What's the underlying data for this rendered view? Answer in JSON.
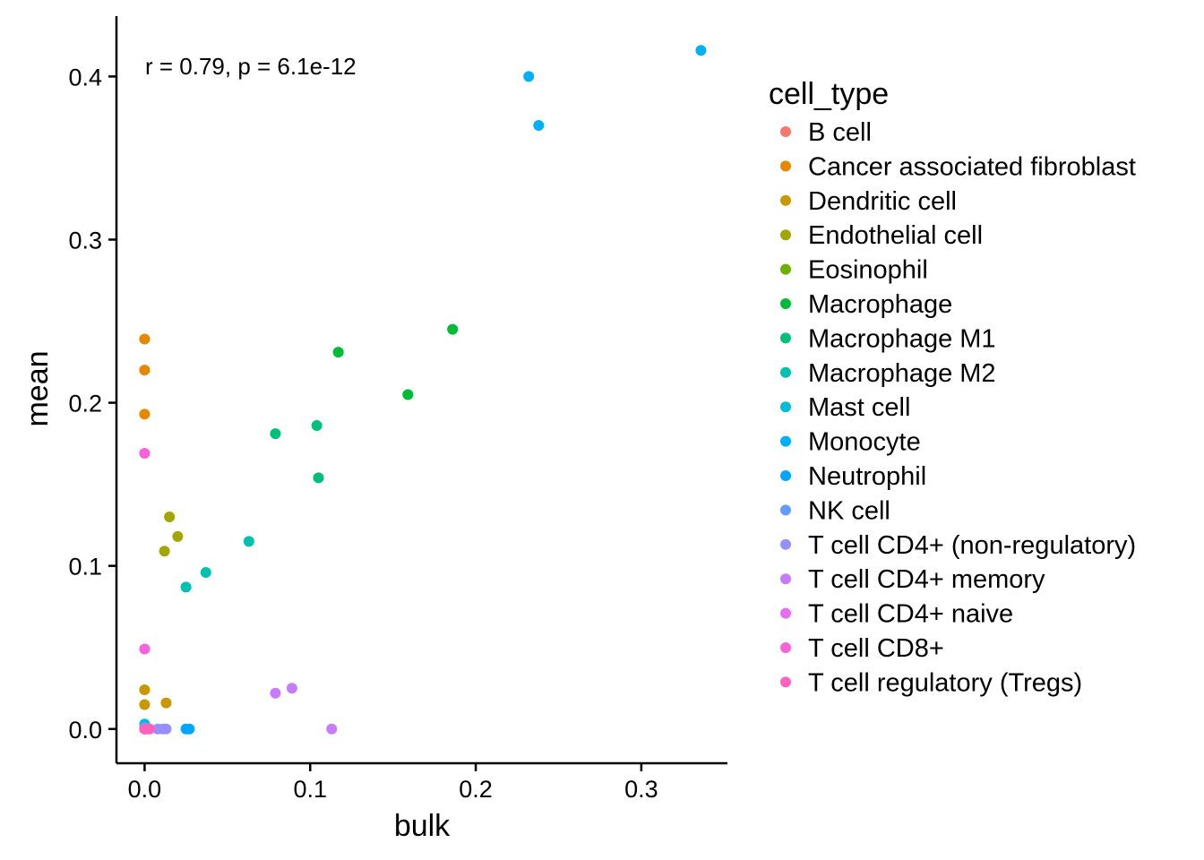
{
  "chart_data": {
    "type": "scatter",
    "xlabel": "bulk",
    "ylabel": "mean",
    "xlim": [
      -0.017,
      0.352
    ],
    "ylim": [
      -0.021,
      0.437
    ],
    "x_ticks": [
      0.0,
      0.1,
      0.2,
      0.3
    ],
    "y_ticks": [
      0.0,
      0.1,
      0.2,
      0.3,
      0.4
    ],
    "x_tick_labels": [
      "0.0",
      "0.1",
      "0.2",
      "0.3"
    ],
    "y_tick_labels": [
      "0.0",
      "0.1",
      "0.2",
      "0.3",
      "0.4"
    ],
    "grid": false,
    "legend_placement": "right",
    "legend_title": "cell_type",
    "annotation": "r = 0.79, p = 6.1e-12",
    "series": [
      {
        "name": "B cell",
        "color": "#F8766D",
        "points": [
          [
            0.0,
            0.0
          ]
        ]
      },
      {
        "name": "Cancer associated fibroblast",
        "color": "#E58700",
        "points": [
          [
            0.0,
            0.239
          ],
          [
            0.0,
            0.22
          ],
          [
            0.0,
            0.193
          ]
        ]
      },
      {
        "name": "Dendritic cell",
        "color": "#C99800",
        "points": [
          [
            0.0,
            0.024
          ],
          [
            0.0,
            0.015
          ],
          [
            0.013,
            0.016
          ]
        ]
      },
      {
        "name": "Endothelial cell",
        "color": "#A3A500",
        "points": [
          [
            0.015,
            0.13
          ],
          [
            0.02,
            0.118
          ],
          [
            0.012,
            0.109
          ]
        ]
      },
      {
        "name": "Eosinophil",
        "color": "#6BB100",
        "points": []
      },
      {
        "name": "Macrophage",
        "color": "#00BA38",
        "points": [
          [
            0.186,
            0.245
          ],
          [
            0.117,
            0.231
          ],
          [
            0.159,
            0.205
          ]
        ]
      },
      {
        "name": "Macrophage M1",
        "color": "#00BF7D",
        "points": [
          [
            0.079,
            0.181
          ],
          [
            0.104,
            0.186
          ],
          [
            0.105,
            0.154
          ]
        ]
      },
      {
        "name": "Macrophage M2",
        "color": "#00C0AF",
        "points": [
          [
            0.063,
            0.115
          ],
          [
            0.037,
            0.096
          ],
          [
            0.025,
            0.087
          ]
        ]
      },
      {
        "name": "Mast cell",
        "color": "#00BCD8",
        "points": [
          [
            0.0,
            0.003
          ]
        ]
      },
      {
        "name": "Monocyte",
        "color": "#00B0F6",
        "points": [
          [
            0.336,
            0.416
          ],
          [
            0.232,
            0.4
          ],
          [
            0.238,
            0.37
          ]
        ]
      },
      {
        "name": "Neutrophil",
        "color": "#00A5FF",
        "points": [
          [
            0.025,
            0.0
          ],
          [
            0.027,
            0.0
          ],
          [
            0.0,
            0.0
          ]
        ]
      },
      {
        "name": "NK cell",
        "color": "#619CFF",
        "points": [
          [
            0.0,
            0.001
          ]
        ]
      },
      {
        "name": "T cell CD4+ (non-regulatory)",
        "color": "#9590FF",
        "points": [
          [
            0.008,
            0.0
          ],
          [
            0.011,
            0.0
          ],
          [
            0.013,
            0.0
          ]
        ]
      },
      {
        "name": "T cell CD4+ memory",
        "color": "#C77CFF",
        "points": [
          [
            0.079,
            0.022
          ],
          [
            0.089,
            0.025
          ],
          [
            0.113,
            0.0
          ]
        ]
      },
      {
        "name": "T cell CD4+ naive",
        "color": "#E76BF3",
        "points": [
          [
            0.0,
            0.0
          ]
        ]
      },
      {
        "name": "T cell CD8+",
        "color": "#FA62DB",
        "points": [
          [
            0.0,
            0.169
          ],
          [
            0.0,
            0.049
          ],
          [
            0.002,
            0.0
          ]
        ]
      },
      {
        "name": "T cell regulatory (Tregs)",
        "color": "#FF62BC",
        "points": [
          [
            0.0,
            0.0
          ],
          [
            0.003,
            0.0
          ]
        ]
      }
    ]
  }
}
